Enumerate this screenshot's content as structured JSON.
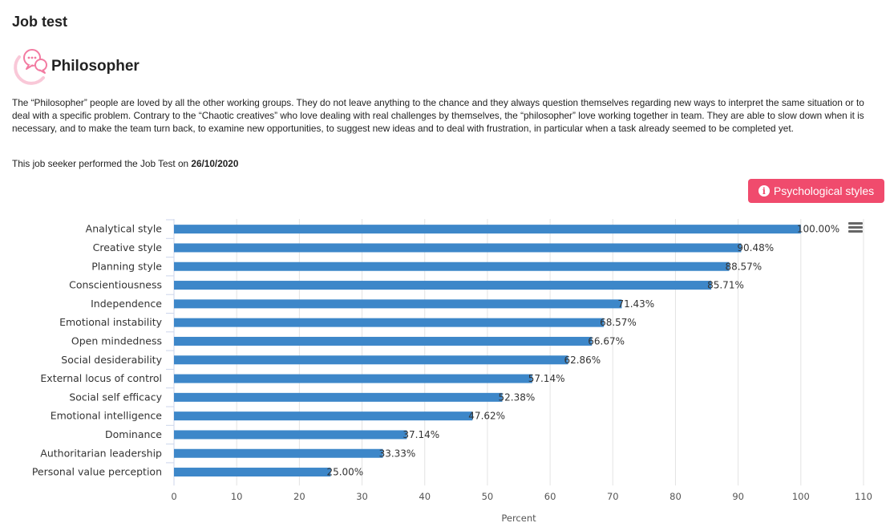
{
  "page": {
    "title": "Job test",
    "profile_name": "Philosopher",
    "description": "The “Philosopher” people are loved by all the other working groups. They do not leave anything to the chance and they always question themselves regarding new ways to interpret the same situation or to deal with a specific problem. Contrary to the “Chaotic creatives” who love dealing with real challenges by themselves, the “philosopher” love working together in team. They are able to slow down when it is necessary, and to make the team turn back, to examine new opportunities, to suggest new ideas and to deal with frustration, in particular when a task already seemed to be completed yet.",
    "test_date_prefix": "This job seeker performed the Job Test on ",
    "test_date": "26/10/2020",
    "styles_button_label": "Psychological styles",
    "styles_button_icon": "info-icon"
  },
  "colors": {
    "bar": "#3d87c9",
    "button": "#f04b6d",
    "logo": "#f27ba1"
  },
  "chart_data": {
    "type": "bar",
    "orientation": "horizontal",
    "categories": [
      "Analytical style",
      "Creative style",
      "Planning style",
      "Conscientiousness",
      "Independence",
      "Emotional instability",
      "Open mindedness",
      "Social desiderability",
      "External locus of control",
      "Social self efficacy",
      "Emotional intelligence",
      "Dominance",
      "Authoritarian leadership",
      "Personal value perception"
    ],
    "values": [
      100,
      90.48,
      88.57,
      85.71,
      71.43,
      68.57,
      66.67,
      62.86,
      57.14,
      52.38,
      47.62,
      37.14,
      33.33,
      25
    ],
    "data_labels": [
      "100.00%",
      "90.48%",
      "88.57%",
      "85.71%",
      "71.43%",
      "68.57%",
      "66.67%",
      "62.86%",
      "57.14%",
      "52.38%",
      "47.62%",
      "37.14%",
      "33.33%",
      "25.00%"
    ],
    "xlabel": "Percent",
    "ylabel": "",
    "xlim": [
      0,
      110
    ],
    "xticks": [
      0,
      10,
      20,
      30,
      40,
      50,
      60,
      70,
      80,
      90,
      100,
      110
    ],
    "grid": true
  }
}
